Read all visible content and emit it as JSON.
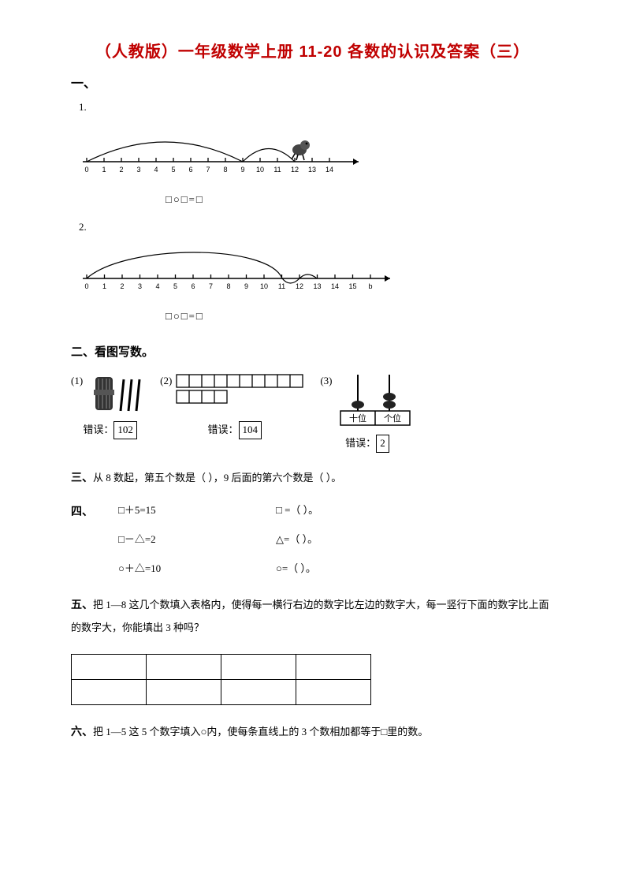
{
  "title": "（人教版）一年级数学上册 11-20 各数的认识及答案（三）",
  "section1": {
    "heading": "一、",
    "q1": "1.",
    "q2": "2.",
    "equation": "□○□=□"
  },
  "numline1": {
    "ticks": [
      "0",
      "1",
      "2",
      "3",
      "4",
      "5",
      "6",
      "7",
      "8",
      "9",
      "10",
      "11",
      "12",
      "13",
      "14"
    ],
    "axis_color": "#000000",
    "tick_fontsize": 9,
    "arc1_from": 0,
    "arc1_to": 9,
    "arc2_from": 9,
    "arc2_to": 12
  },
  "numline2": {
    "ticks": [
      "0",
      "1",
      "2",
      "3",
      "4",
      "5",
      "6",
      "7",
      "8",
      "9",
      "10",
      "11",
      "12",
      "13",
      "14",
      "15",
      "b"
    ],
    "axis_color": "#000000",
    "tick_fontsize": 9,
    "arc_from": 0,
    "arc_to": 13,
    "dip_at": 11
  },
  "section2": {
    "heading": "二、看图写数。",
    "items": [
      {
        "label": "(1)",
        "err_prefix": "错误：",
        "err_value": "102"
      },
      {
        "label": "(2)",
        "err_prefix": "错误：",
        "err_value": "104"
      },
      {
        "label": "(3)",
        "err_prefix": "错误：",
        "err_value": "2"
      }
    ],
    "placevalue_labels": {
      "tens": "十位",
      "ones": "个位"
    }
  },
  "section3": {
    "prefix": "三、",
    "text_a": "从 8 数起，第五个数是（",
    "blank": "        ",
    "text_b": "），9 后面的第六个数是（",
    "text_c": "）。"
  },
  "section4": {
    "prefix": "四、",
    "rows": [
      {
        "left": "□＋5=15",
        "right": "□ =（        ）。"
      },
      {
        "left": "□－△=2",
        "right": "△=（        ）。"
      },
      {
        "left": "○＋△=10",
        "right": "○=（        ）。"
      }
    ]
  },
  "section5": {
    "prefix": "五、",
    "text": "把 1—8 这几个数填入表格内，使得每一横行右边的数字比左边的数字大，每一竖行下面的数字比上面的数字大，你能填出 3 种吗？",
    "grid": {
      "rows": 2,
      "cols": 4,
      "border_color": "#000000"
    }
  },
  "section6": {
    "prefix": "六、",
    "text": "把 1—5 这 5 个数字填入○内，使每条直线上的 3 个数相加都等于□里的数。"
  },
  "colors": {
    "title": "#c00000",
    "text": "#000000",
    "background": "#ffffff"
  }
}
